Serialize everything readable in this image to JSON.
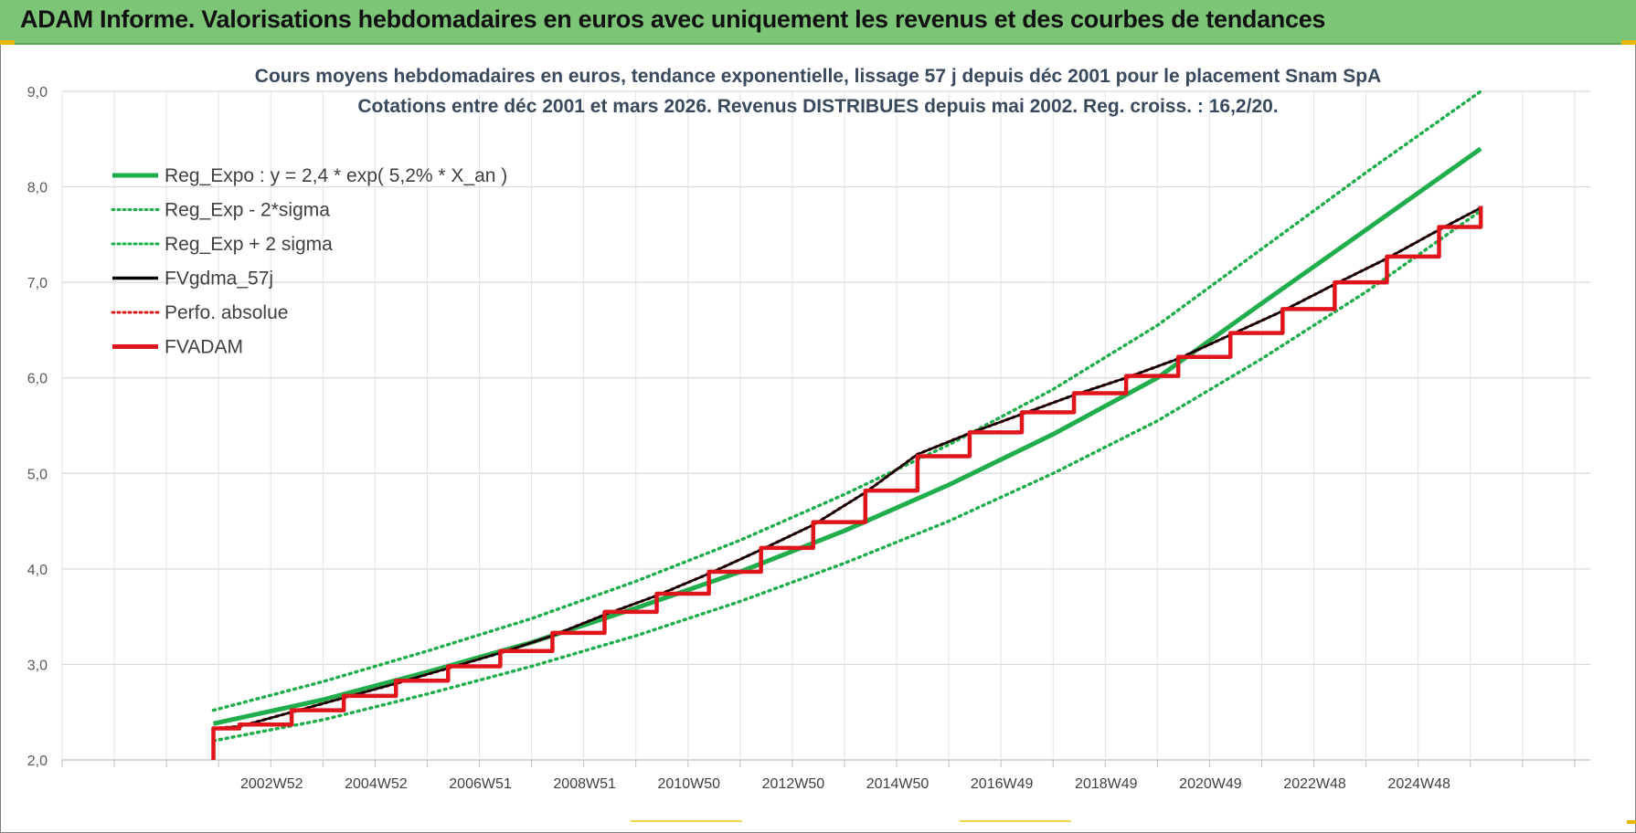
{
  "header": {
    "title": "ADAM Informe. Valorisations hebdomadaires en euros avec uniquement les revenus et des courbes de tendances"
  },
  "chart_data": {
    "type": "line",
    "title_line1": "Cours moyens hebdomadaires en euros, tendance exponentielle, lissage 57 j depuis déc 2001 pour le placement Snam SpA",
    "title_line2": "Cotations entre déc 2001 et mars 2026. Revenus DISTRIBUES depuis mai 2002. Reg. croiss. : 16,2/20.",
    "ylim": [
      2.0,
      9.0
    ],
    "y_ticks": [
      "2,0",
      "3,0",
      "4,0",
      "5,0",
      "6,0",
      "7,0",
      "8,0",
      "9,0"
    ],
    "x_range": [
      1999.0,
      2028.3
    ],
    "x_ticks": [
      {
        "label": "2002W52",
        "x": 2003.0
      },
      {
        "label": "2004W52",
        "x": 2005.0
      },
      {
        "label": "2006W51",
        "x": 2007.0
      },
      {
        "label": "2008W51",
        "x": 2009.0
      },
      {
        "label": "2010W50",
        "x": 2011.0
      },
      {
        "label": "2012W50",
        "x": 2013.0
      },
      {
        "label": "2014W50",
        "x": 2015.0
      },
      {
        "label": "2016W49",
        "x": 2017.0
      },
      {
        "label": "2018W49",
        "x": 2019.0
      },
      {
        "label": "2020W49",
        "x": 2021.0
      },
      {
        "label": "2022W48",
        "x": 2023.0
      },
      {
        "label": "2024W48",
        "x": 2025.0
      }
    ],
    "grid": true,
    "legend_position": "top-left",
    "series": [
      {
        "name": "Reg_Expo : y = 2,4 * exp( 5,2% *  X_an )",
        "color": "#1fae4b",
        "style": "solid",
        "x": [
          2001.9,
          2004.0,
          2006.0,
          2008.0,
          2010.0,
          2012.0,
          2014.0,
          2016.0,
          2018.0,
          2020.0,
          2022.0,
          2024.0,
          2026.2
        ],
        "y": [
          2.38,
          2.63,
          2.92,
          3.23,
          3.59,
          3.97,
          4.4,
          4.88,
          5.41,
          6.0,
          6.78,
          7.55,
          8.4
        ]
      },
      {
        "name": "Reg_Exp - 2*sigma",
        "color": "#1fae4b",
        "style": "dotted",
        "x": [
          2001.9,
          2004.0,
          2006.0,
          2008.0,
          2010.0,
          2012.0,
          2014.0,
          2016.0,
          2018.0,
          2020.0,
          2022.0,
          2024.0,
          2026.2
        ],
        "y": [
          2.2,
          2.42,
          2.69,
          2.98,
          3.3,
          3.66,
          4.06,
          4.5,
          5.0,
          5.55,
          6.2,
          6.9,
          7.75
        ]
      },
      {
        "name": "Reg_Exp + 2 sigma",
        "color": "#1fae4b",
        "style": "dotted",
        "x": [
          2001.9,
          2004.0,
          2006.0,
          2008.0,
          2010.0,
          2012.0,
          2014.0,
          2016.0,
          2018.0,
          2020.0,
          2022.0,
          2024.0,
          2026.2
        ],
        "y": [
          2.52,
          2.82,
          3.14,
          3.48,
          3.87,
          4.3,
          4.78,
          5.3,
          5.88,
          6.55,
          7.35,
          8.15,
          9.0
        ]
      },
      {
        "name": "FVgdma_57j",
        "color": "#000000",
        "style": "solid",
        "x": [
          2001.9,
          2002.4,
          2003.4,
          2004.4,
          2005.4,
          2006.4,
          2007.4,
          2008.4,
          2009.4,
          2010.4,
          2011.4,
          2012.4,
          2013.4,
          2014.4,
          2015.4,
          2016.4,
          2017.4,
          2018.4,
          2019.4,
          2020.4,
          2021.4,
          2022.4,
          2023.4,
          2024.4,
          2025.4,
          2026.2
        ],
        "y": [
          2.33,
          2.35,
          2.5,
          2.65,
          2.8,
          2.96,
          3.12,
          3.3,
          3.52,
          3.72,
          3.95,
          4.2,
          4.46,
          4.8,
          5.2,
          5.42,
          5.62,
          5.82,
          6.0,
          6.2,
          6.45,
          6.7,
          6.98,
          7.25,
          7.55,
          7.78
        ]
      },
      {
        "name": "Perfo. absolue",
        "color": "#d7191c",
        "style": "dotted",
        "x": [
          2001.9,
          2002.4,
          2003.4,
          2004.4,
          2005.4,
          2006.4,
          2007.4,
          2008.4,
          2009.4,
          2010.4,
          2011.4,
          2012.4,
          2013.4,
          2014.4,
          2015.4,
          2016.4,
          2017.4,
          2018.4,
          2019.4,
          2020.4,
          2021.4,
          2022.4,
          2023.4,
          2024.4,
          2025.4,
          2026.2
        ],
        "y": [
          2.33,
          2.35,
          2.5,
          2.65,
          2.8,
          2.96,
          3.12,
          3.3,
          3.52,
          3.72,
          3.95,
          4.2,
          4.46,
          4.8,
          5.2,
          5.42,
          5.62,
          5.82,
          6.0,
          6.2,
          6.45,
          6.7,
          6.98,
          7.25,
          7.55,
          7.78
        ]
      },
      {
        "name": "FVADAM",
        "color": "#e0151b",
        "style": "step",
        "x": [
          2001.9,
          2001.9,
          2002.4,
          2003.4,
          2004.4,
          2005.4,
          2006.4,
          2007.4,
          2008.4,
          2009.4,
          2010.4,
          2011.4,
          2012.4,
          2013.4,
          2014.4,
          2015.4,
          2016.4,
          2017.4,
          2018.4,
          2019.4,
          2020.4,
          2021.4,
          2022.4,
          2023.4,
          2024.4,
          2025.4,
          2026.2
        ],
        "y": [
          2.0,
          2.33,
          2.37,
          2.52,
          2.67,
          2.83,
          2.98,
          3.14,
          3.33,
          3.55,
          3.74,
          3.97,
          4.22,
          4.49,
          4.82,
          5.18,
          5.43,
          5.64,
          5.84,
          6.02,
          6.22,
          6.47,
          6.72,
          7.0,
          7.27,
          7.58,
          7.8
        ]
      }
    ]
  }
}
